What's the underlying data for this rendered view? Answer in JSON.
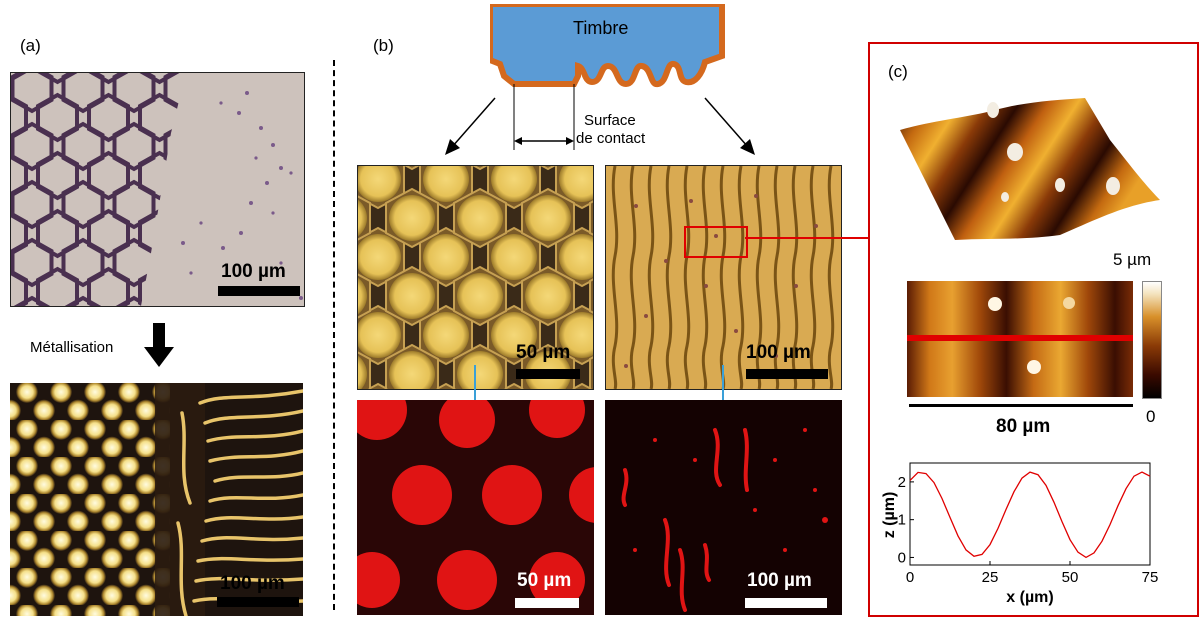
{
  "panel_a": {
    "label": "(a)",
    "top_scale": "100 µm",
    "bottom_scale": "100 µm",
    "process_label": "Métallisation"
  },
  "panel_b": {
    "label": "(b)",
    "stamp_label": "Timbre",
    "contact_label_line1": "Surface",
    "contact_label_line2": "de contact",
    "scale_tl": "50 µm",
    "scale_tr": "100 µm",
    "scale_bl": "50 µm",
    "scale_br": "100 µm"
  },
  "panel_c": {
    "label": "(c)",
    "colorbar_max": "5 µm",
    "colorbar_min": "0",
    "map_scale": "80 µm"
  },
  "chart_data": {
    "type": "line",
    "xlabel": "x (µm)",
    "ylabel": "z (µm)",
    "xlim": [
      0,
      75
    ],
    "ylim": [
      -0.2,
      2.5
    ],
    "xticks": [
      "0",
      "25",
      "50",
      "75"
    ],
    "yticks": [
      "0",
      "1",
      "2"
    ],
    "line_color": "#e00000",
    "x": [
      0,
      2.5,
      5,
      7.5,
      10,
      12.5,
      15,
      17.5,
      20,
      22.5,
      25,
      27.5,
      30,
      32.5,
      35,
      37.5,
      40,
      42.5,
      45,
      47.5,
      50,
      52.5,
      55,
      57.5,
      60,
      62.5,
      65,
      67.5,
      70,
      72.5,
      75
    ],
    "y": [
      2.04,
      2.25,
      2.22,
      1.98,
      1.56,
      1.06,
      0.57,
      0.2,
      0.03,
      0.08,
      0.34,
      0.77,
      1.27,
      1.74,
      2.1,
      2.26,
      2.19,
      1.91,
      1.46,
      0.95,
      0.47,
      0.14,
      0.0,
      0.12,
      0.43,
      0.87,
      1.37,
      1.82,
      2.15,
      2.26,
      2.15
    ]
  }
}
